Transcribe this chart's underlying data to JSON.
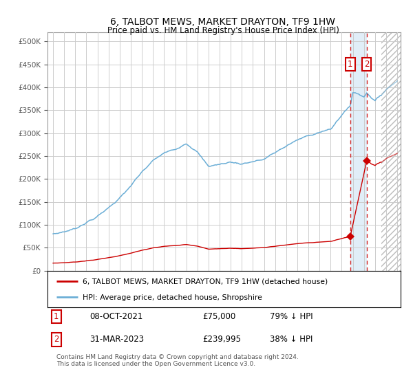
{
  "title": "6, TALBOT MEWS, MARKET DRAYTON, TF9 1HW",
  "subtitle": "Price paid vs. HM Land Registry's House Price Index (HPI)",
  "ytick_vals": [
    0,
    50000,
    100000,
    150000,
    200000,
    250000,
    300000,
    350000,
    400000,
    450000,
    500000
  ],
  "ylim": [
    0,
    520000
  ],
  "xlim_start": 1994.5,
  "xlim_end": 2026.3,
  "hpi_color": "#6baed6",
  "price_color": "#cc0000",
  "sale1_x": 2021.77,
  "sale1_price": 75000,
  "sale2_x": 2023.25,
  "sale2_price": 239995,
  "hatch_start": 2024.58,
  "shade_color": "#daeaf7",
  "legend_line1": "6, TALBOT MEWS, MARKET DRAYTON, TF9 1HW (detached house)",
  "legend_line2": "HPI: Average price, detached house, Shropshire",
  "table_row1_num": "1",
  "table_row1_date": "08-OCT-2021",
  "table_row1_price": "£75,000",
  "table_row1_hpi": "79% ↓ HPI",
  "table_row2_num": "2",
  "table_row2_date": "31-MAR-2023",
  "table_row2_price": "£239,995",
  "table_row2_hpi": "38% ↓ HPI",
  "footer": "Contains HM Land Registry data © Crown copyright and database right 2024.\nThis data is licensed under the Open Government Licence v3.0.",
  "bg_color": "#ffffff",
  "grid_color": "#cccccc"
}
